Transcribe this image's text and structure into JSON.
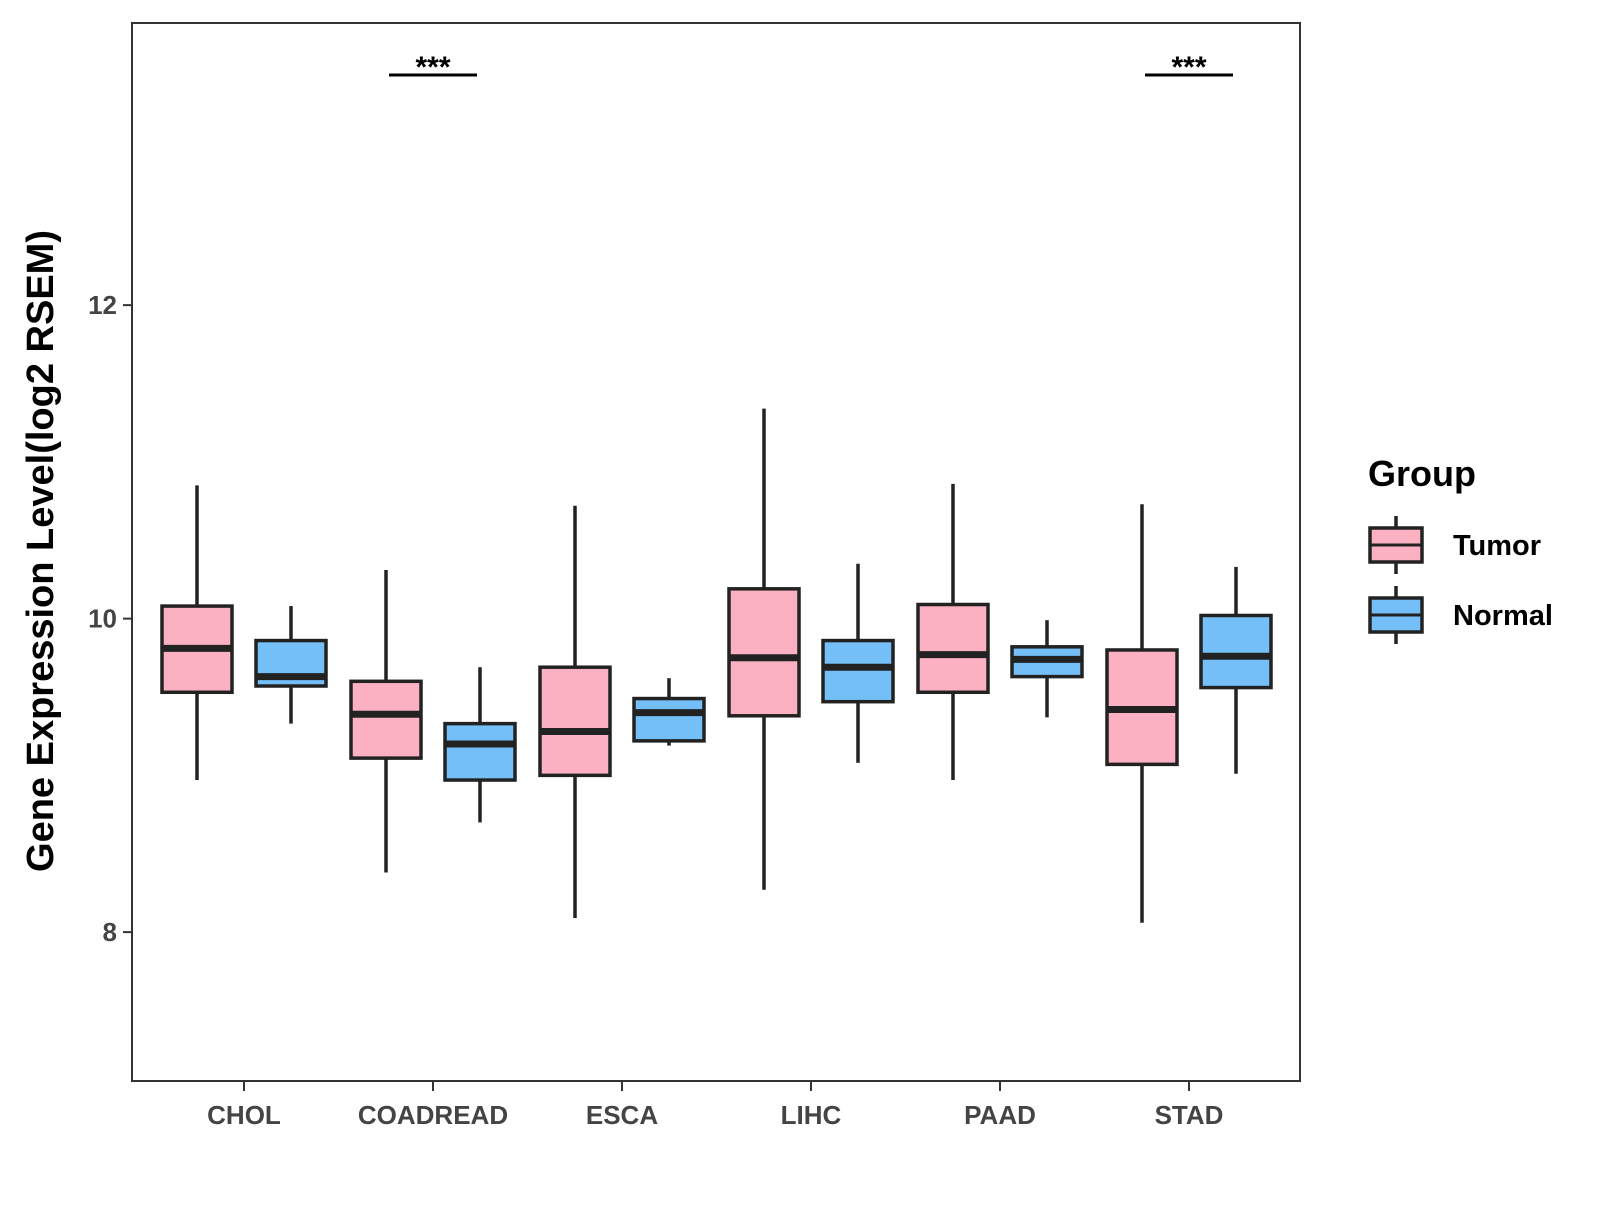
{
  "chart_data": {
    "type": "boxplot",
    "title": "",
    "xlabel": "",
    "ylabel": "Gene Expression Level(log2 RSEM)",
    "ylim": [
      7.05,
      13.8
    ],
    "yticks": [
      8,
      10,
      12
    ],
    "categories": [
      "CHOL",
      "COADREAD",
      "ESCA",
      "LIHC",
      "PAAD",
      "STAD"
    ],
    "legend": {
      "title": "Group",
      "position": "right",
      "entries": [
        {
          "name": "Tumor",
          "color": "#FBB1C2"
        },
        {
          "name": "Normal",
          "color": "#74BFF8"
        }
      ]
    },
    "series": [
      {
        "name": "Tumor",
        "color": "#FBB1C2",
        "boxes": [
          {
            "category": "CHOL",
            "min": 8.97,
            "q1": 9.53,
            "median": 9.81,
            "q3": 10.08,
            "max": 10.85
          },
          {
            "category": "COADREAD",
            "min": 8.38,
            "q1": 9.11,
            "median": 9.39,
            "q3": 9.6,
            "max": 10.31
          },
          {
            "category": "ESCA",
            "min": 8.09,
            "q1": 9.0,
            "median": 9.28,
            "q3": 9.69,
            "max": 10.72
          },
          {
            "category": "LIHC",
            "min": 8.27,
            "q1": 9.38,
            "median": 9.75,
            "q3": 10.19,
            "max": 11.34
          },
          {
            "category": "PAAD",
            "min": 8.97,
            "q1": 9.53,
            "median": 9.77,
            "q3": 10.09,
            "max": 10.86
          },
          {
            "category": "STAD",
            "min": 8.06,
            "q1": 9.07,
            "median": 9.42,
            "q3": 9.8,
            "max": 10.73
          }
        ]
      },
      {
        "name": "Normal",
        "color": "#74BFF8",
        "boxes": [
          {
            "category": "CHOL",
            "min": 9.33,
            "q1": 9.57,
            "median": 9.63,
            "q3": 9.86,
            "max": 10.08
          },
          {
            "category": "COADREAD",
            "min": 8.7,
            "q1": 8.97,
            "median": 9.2,
            "q3": 9.33,
            "max": 9.69
          },
          {
            "category": "ESCA",
            "min": 9.19,
            "q1": 9.22,
            "median": 9.4,
            "q3": 9.49,
            "max": 9.62
          },
          {
            "category": "LIHC",
            "min": 9.08,
            "q1": 9.47,
            "median": 9.69,
            "q3": 9.86,
            "max": 10.35
          },
          {
            "category": "PAAD",
            "min": 9.37,
            "q1": 9.63,
            "median": 9.74,
            "q3": 9.82,
            "max": 9.99
          },
          {
            "category": "STAD",
            "min": 9.01,
            "q1": 9.56,
            "median": 9.76,
            "q3": 10.02,
            "max": 10.33
          }
        ]
      }
    ],
    "annotations": [
      {
        "category": "COADREAD",
        "label": "***"
      },
      {
        "category": "STAD",
        "label": "***"
      }
    ]
  }
}
